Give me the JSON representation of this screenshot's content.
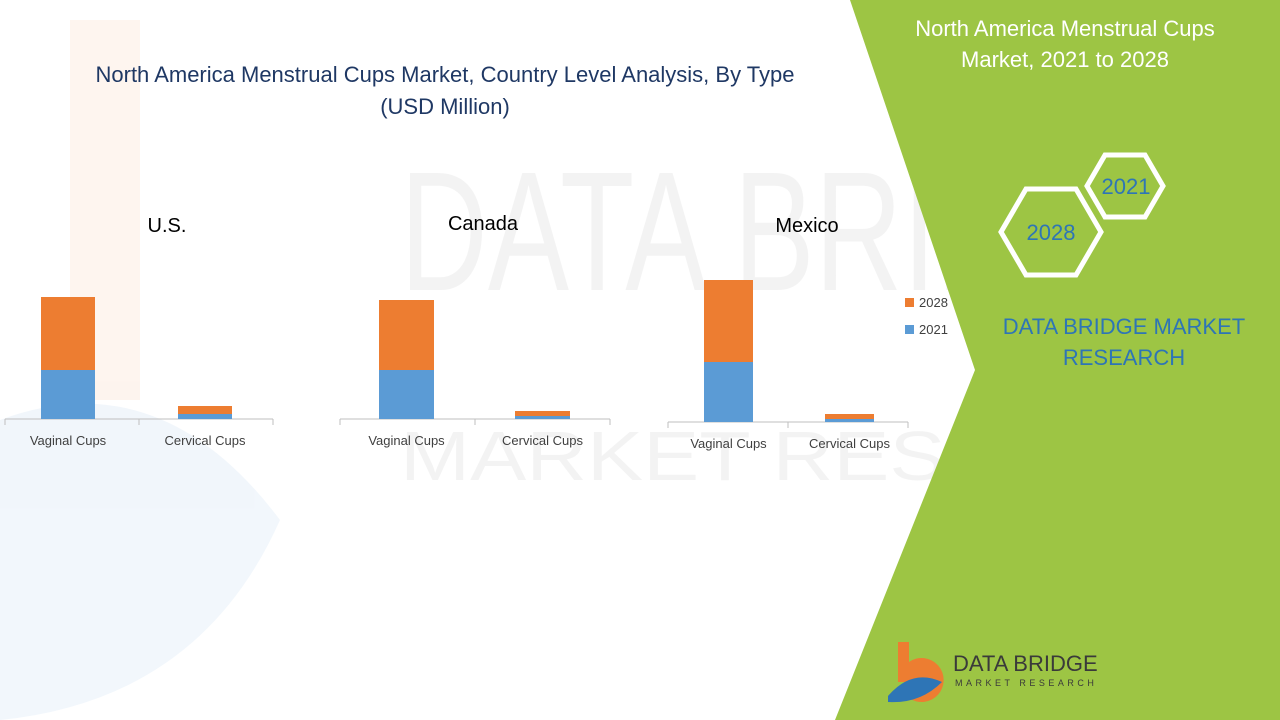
{
  "title": "North America Menstrual Cups Market, Country Level Analysis, By Type (USD Million)",
  "title_lines": [
    "North America Menstrual Cups Market, Country Level Analysis, By Type",
    "(USD Million)"
  ],
  "panel": {
    "heading_lines": [
      "North America Menstrual Cups",
      "Market, 2021 to 2028"
    ],
    "hex_labels": [
      "2021",
      "2028"
    ],
    "brand_lines": [
      "DATA BRIDGE MARKET",
      "RESEARCH"
    ]
  },
  "logo": {
    "name": "DATA BRIDGE",
    "tagline": "MARKET RESEARCH"
  },
  "watermark": {
    "line1": "DATA BRIDGE",
    "line2": "MARKET RESEARCH"
  },
  "colors": {
    "series_2021": "#5B9BD5",
    "series_2028": "#ED7D31",
    "panel_green": "#9DC544",
    "title_blue": "#1F3864",
    "brand_blue": "#2E75B6",
    "white": "#ffffff"
  },
  "chart_data": [
    {
      "type": "bar",
      "stacked": true,
      "title": "U.S.",
      "categories": [
        "Vaginal Cups",
        "Cervical Cups"
      ],
      "series": [
        {
          "name": "2021",
          "values": [
            49,
            5
          ]
        },
        {
          "name": "2028",
          "values": [
            73,
            8
          ]
        }
      ],
      "ylim": [
        0,
        130
      ],
      "grid": false
    },
    {
      "type": "bar",
      "stacked": true,
      "title": "Canada",
      "categories": [
        "Vaginal Cups",
        "Cervical Cups"
      ],
      "series": [
        {
          "name": "2021",
          "values": [
            49,
            3
          ]
        },
        {
          "name": "2028",
          "values": [
            70,
            5
          ]
        }
      ],
      "ylim": [
        0,
        130
      ],
      "grid": false
    },
    {
      "type": "bar",
      "stacked": true,
      "title": "Mexico",
      "categories": [
        "Vaginal Cups",
        "Cervical Cups"
      ],
      "series": [
        {
          "name": "2021",
          "values": [
            60,
            3
          ]
        },
        {
          "name": "2028",
          "values": [
            82,
            5
          ]
        }
      ],
      "ylim": [
        0,
        150
      ],
      "grid": false
    }
  ],
  "legend": {
    "position": "right",
    "entries": [
      "2028",
      "2021"
    ]
  }
}
